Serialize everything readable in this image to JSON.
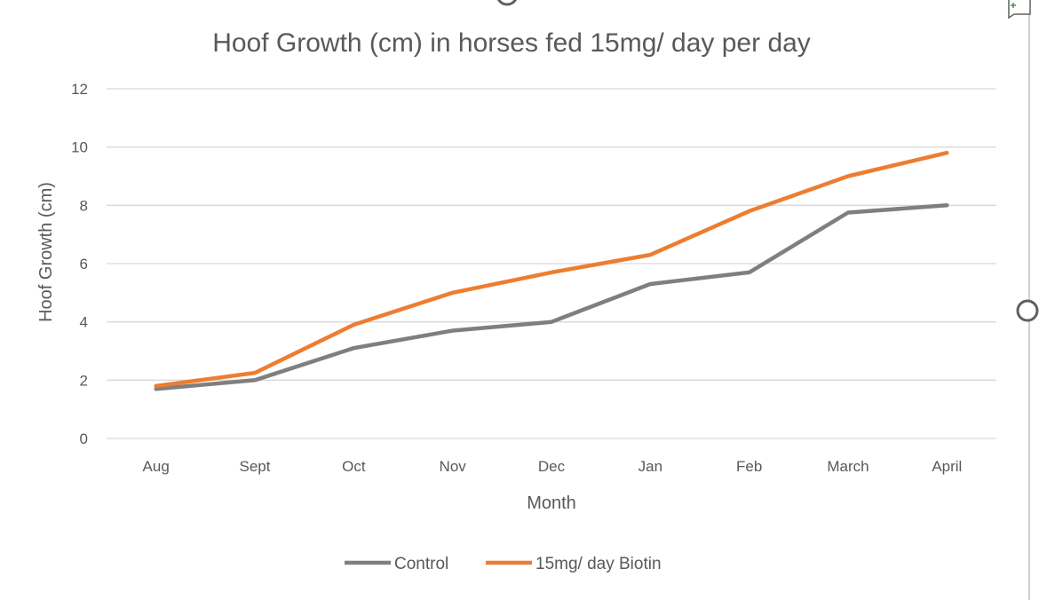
{
  "chart_data": {
    "type": "line",
    "title": "Hoof Growth (cm) in horses fed 15mg/ day per day",
    "xlabel": "Month",
    "ylabel": "Hoof Growth (cm)",
    "categories": [
      "Aug",
      "Sept",
      "Oct",
      "Nov",
      "Dec",
      "Jan",
      "Feb",
      "March",
      "April"
    ],
    "ylim": [
      0,
      12
    ],
    "yticks": [
      0,
      2,
      4,
      6,
      8,
      10,
      12
    ],
    "grid": true,
    "legend_position": "bottom",
    "series": [
      {
        "name": "Control",
        "color": "#7f7f7f",
        "values": [
          1.7,
          2.0,
          3.1,
          3.7,
          4.0,
          5.3,
          5.7,
          7.75,
          8.0
        ]
      },
      {
        "name": "15mg/ day Biotin",
        "color": "#ed7d31",
        "values": [
          1.8,
          2.25,
          3.9,
          5.0,
          5.7,
          6.3,
          7.8,
          9.0,
          9.8
        ]
      }
    ]
  }
}
